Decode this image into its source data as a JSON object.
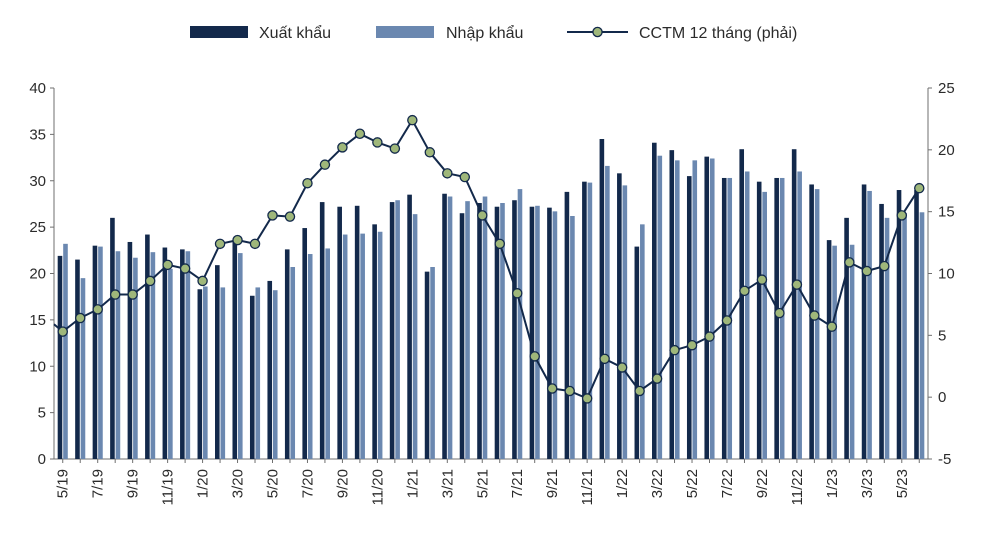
{
  "chart_data": {
    "type": "bar",
    "legend": {
      "placement": "top",
      "items": [
        {
          "label": "Xuất khẩu",
          "kind": "bar",
          "color": "#13294b"
        },
        {
          "label": "Nhập khẩu",
          "kind": "bar",
          "color": "#6b88b0"
        },
        {
          "label": "CCTM 12 tháng (phải)",
          "kind": "line",
          "color": "#13294b",
          "marker_color": "#9fb77a"
        }
      ]
    },
    "categories": [
      "5/19",
      "6/19",
      "7/19",
      "8/19",
      "9/19",
      "10/19",
      "11/19",
      "12/19",
      "1/20",
      "2/20",
      "3/20",
      "4/20",
      "5/20",
      "6/20",
      "7/20",
      "8/20",
      "9/20",
      "10/20",
      "11/20",
      "12/20",
      "1/21",
      "2/21",
      "3/21",
      "4/21",
      "5/21",
      "6/21",
      "7/21",
      "8/21",
      "9/21",
      "10/21",
      "11/21",
      "12/21",
      "1/22",
      "2/22",
      "3/22",
      "4/22",
      "5/22",
      "6/22",
      "7/22",
      "8/22",
      "9/22",
      "10/22",
      "11/22",
      "12/22",
      "1/23",
      "2/23",
      "3/23",
      "4/23",
      "5/23",
      "6/23"
    ],
    "x_tick_labels": [
      "5/19",
      "7/19",
      "9/19",
      "11/19",
      "1/20",
      "3/20",
      "5/20",
      "7/20",
      "9/20",
      "11/20",
      "1/21",
      "3/21",
      "5/21",
      "7/21",
      "9/21",
      "11/21",
      "1/22",
      "3/22",
      "5/22",
      "7/22",
      "9/22",
      "11/22",
      "1/23",
      "3/23",
      "5/23"
    ],
    "series": [
      {
        "name": "Xuất khẩu",
        "type": "bar",
        "axis": "left",
        "color": "#13294b",
        "values": [
          21.9,
          21.5,
          23.0,
          26.0,
          23.4,
          24.2,
          22.8,
          22.6,
          18.3,
          20.9,
          23.5,
          17.6,
          19.2,
          22.6,
          24.9,
          27.7,
          27.2,
          27.3,
          25.3,
          27.7,
          28.5,
          20.2,
          28.6,
          26.5,
          27.6,
          27.2,
          27.9,
          27.2,
          27.1,
          28.8,
          29.9,
          34.5,
          30.8,
          22.9,
          34.1,
          33.3,
          30.5,
          32.6,
          30.3,
          33.4,
          29.9,
          30.3,
          33.4,
          29.6,
          23.6,
          26.0,
          29.6,
          27.5,
          29.0,
          29.0
        ]
      },
      {
        "name": "Nhập khẩu",
        "type": "bar",
        "axis": "left",
        "color": "#6b88b0",
        "values": [
          23.2,
          19.5,
          22.9,
          22.4,
          21.7,
          22.3,
          20.5,
          22.4,
          18.6,
          18.5,
          22.2,
          18.5,
          18.2,
          20.7,
          22.1,
          22.7,
          24.2,
          24.3,
          24.5,
          27.9,
          26.4,
          20.7,
          28.3,
          27.8,
          28.3,
          27.6,
          29.1,
          27.3,
          26.7,
          26.2,
          29.8,
          31.6,
          29.5,
          25.3,
          32.7,
          32.2,
          32.2,
          32.4,
          30.3,
          31.0,
          28.8,
          30.3,
          31.0,
          29.1,
          23.0,
          23.1,
          28.9,
          26.0,
          26.5,
          26.6
        ]
      },
      {
        "name": "CCTM 12 tháng (phải)",
        "type": "line",
        "axis": "right",
        "color": "#13294b",
        "marker_color": "#9fb77a",
        "values": [
          5.3,
          6.4,
          7.1,
          8.3,
          8.3,
          9.4,
          10.7,
          10.4,
          9.4,
          12.4,
          12.7,
          12.4,
          14.7,
          14.6,
          17.3,
          18.8,
          20.2,
          21.3,
          20.6,
          20.1,
          22.4,
          19.8,
          18.1,
          17.8,
          14.7,
          12.4,
          8.4,
          3.3,
          0.7,
          0.5,
          -0.1,
          3.1,
          2.4,
          0.5,
          1.5,
          3.8,
          4.2,
          4.9,
          6.2,
          8.6,
          9.5,
          6.8,
          9.1,
          6.6,
          5.7,
          10.9,
          10.2,
          10.6,
          14.7,
          16.9
        ]
      }
    ],
    "ylim_left": [
      0,
      40
    ],
    "yticks_left": [
      0,
      5,
      10,
      15,
      20,
      25,
      30,
      35,
      40
    ],
    "ylim_right": [
      -5,
      25
    ],
    "yticks_right": [
      -5,
      0,
      5,
      10,
      15,
      20,
      25
    ],
    "xlabel": "",
    "ylabel": "",
    "title": "",
    "grid": false
  }
}
